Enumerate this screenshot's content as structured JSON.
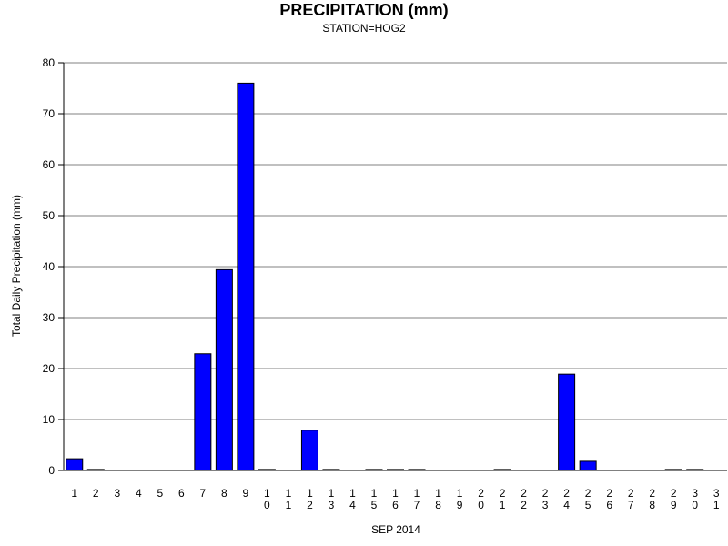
{
  "chart_data": {
    "type": "bar",
    "title": "PRECIPITATION (mm)",
    "subtitle": "STATION=HOG2",
    "xlabel": "SEP 2014",
    "ylabel": "Total Daily Precipitation (mm)",
    "ylim": [
      0,
      80
    ],
    "yticks": [
      0,
      10,
      20,
      30,
      40,
      50,
      60,
      70,
      80
    ],
    "grid": true,
    "categories": [
      "1",
      "2",
      "3",
      "4",
      "5",
      "6",
      "7",
      "8",
      "9",
      "10",
      "11",
      "12",
      "13",
      "14",
      "15",
      "16",
      "17",
      "18",
      "19",
      "20",
      "21",
      "22",
      "23",
      "24",
      "25",
      "26",
      "27",
      "28",
      "29",
      "30",
      "31"
    ],
    "values": [
      2.3,
      0.2,
      0,
      0,
      0,
      0,
      22.9,
      39.4,
      76.0,
      0.2,
      0,
      7.9,
      0.2,
      0,
      0.2,
      0.2,
      0.2,
      0,
      0,
      0,
      0.2,
      0,
      0,
      18.9,
      1.8,
      0,
      0,
      0,
      0.2,
      0.2,
      0
    ],
    "colors": {
      "bar_fill": "#0000ff",
      "bar_stroke": "#000000",
      "grid": "#808080",
      "axis": "#000000"
    }
  }
}
